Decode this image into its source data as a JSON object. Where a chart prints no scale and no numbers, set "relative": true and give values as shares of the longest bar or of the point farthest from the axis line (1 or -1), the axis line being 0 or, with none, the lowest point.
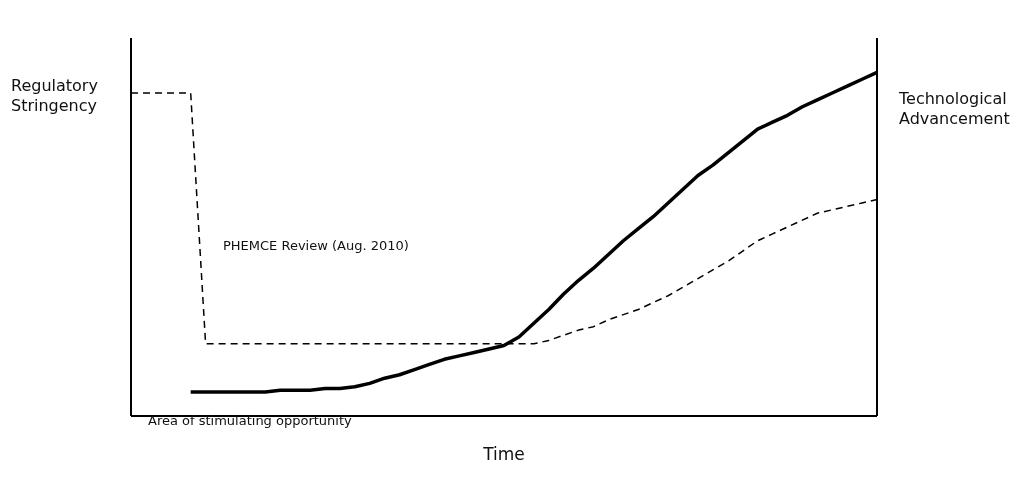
{
  "chart_data": {
    "type": "line",
    "relative": true,
    "xlabel": "Time",
    "marker": "none",
    "categories": [
      null,
      null,
      null,
      null,
      null,
      null,
      null,
      null,
      null,
      null,
      null,
      null,
      null,
      null,
      null,
      null,
      null,
      null,
      null,
      null,
      null,
      null,
      null,
      null,
      null,
      null,
      null,
      null,
      null,
      null,
      null,
      null,
      null,
      null,
      null,
      null,
      null,
      null,
      null,
      null,
      null,
      null,
      null,
      null,
      null,
      null,
      null,
      null,
      null,
      null,
      null
    ],
    "series": [
      {
        "name": "Regulatory Stringency",
        "color": "#000000",
        "line_style": "dashed",
        "values": [
          0.94,
          0.94,
          0.94,
          0.94,
          0.94,
          0.21,
          0.21,
          0.21,
          0.21,
          0.21,
          0.21,
          0.21,
          0.21,
          0.21,
          0.21,
          0.21,
          0.21,
          0.21,
          0.21,
          0.21,
          0.21,
          0.21,
          0.21,
          0.21,
          0.21,
          0.21,
          0.21,
          0.21,
          0.22,
          0.235,
          0.25,
          0.26,
          0.28,
          0.295,
          0.31,
          0.33,
          0.35,
          0.375,
          0.4,
          0.425,
          0.45,
          0.48,
          0.51,
          0.53,
          0.55,
          0.57,
          0.59,
          0.6,
          0.61,
          0.62,
          0.63
        ]
      },
      {
        "name": "Technological Advancement",
        "color": "#000000",
        "line_style": "solid",
        "values": [
          null,
          null,
          null,
          null,
          0.07,
          0.07,
          0.07,
          0.07,
          0.07,
          0.07,
          0.075,
          0.075,
          0.075,
          0.08,
          0.08,
          0.085,
          0.095,
          0.11,
          0.12,
          0.135,
          0.15,
          0.165,
          0.175,
          0.185,
          0.195,
          0.205,
          0.23,
          0.27,
          0.31,
          0.355,
          0.395,
          0.43,
          0.47,
          0.51,
          0.545,
          0.58,
          0.62,
          0.66,
          0.7,
          0.73,
          0.765,
          0.8,
          0.835,
          0.855,
          0.875,
          0.9,
          0.92,
          0.94,
          0.96,
          0.98,
          1
        ]
      }
    ],
    "annotations": [
      "PHEMCE Review (Aug. 2010)",
      "Area of stimulating opportunity"
    ]
  }
}
